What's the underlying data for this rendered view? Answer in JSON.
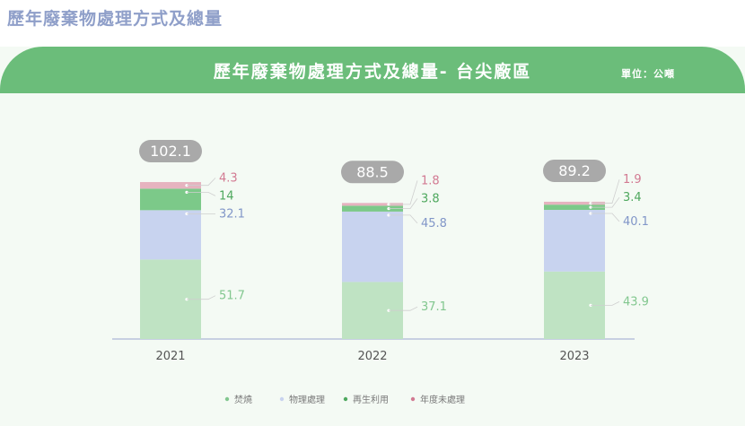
{
  "header": {
    "title": "歷年廢棄物處理方式及總量"
  },
  "banner": {
    "title": "歷年廢棄物處理方式及總量- 台尖廠區",
    "unit": "單位：公噸"
  },
  "chart_data": {
    "type": "bar",
    "stacked": true,
    "categories": [
      "2021",
      "2022",
      "2023"
    ],
    "totals": [
      "102.1",
      "88.5",
      "89.2"
    ],
    "series": [
      {
        "name": "焚燒",
        "values": [
          51.7,
          37.1,
          43.9
        ],
        "color": "#bfe3c3",
        "label_color": "#82c78f"
      },
      {
        "name": "物理處理",
        "values": [
          32.1,
          45.8,
          40.1
        ],
        "color": "#c8d3ef",
        "label_color": "#8196c8"
      },
      {
        "name": "再生利用",
        "values": [
          14,
          3.8,
          3.4
        ],
        "color": "#7cc989",
        "label_color": "#4ea85e"
      },
      {
        "name": "年度未處理",
        "values": [
          4.3,
          1.8,
          1.9
        ],
        "color": "#e6b3bf",
        "label_color": "#d27a92"
      }
    ],
    "value_labels": [
      [
        "51.7",
        "32.1",
        "14",
        "4.3"
      ],
      [
        "37.1",
        "45.8",
        "3.8",
        "1.8"
      ],
      [
        "43.9",
        "40.1",
        "3.4",
        "1.9"
      ]
    ],
    "ylim": [
      0,
      102.1
    ],
    "grid": false,
    "legend_position": "bottom"
  }
}
